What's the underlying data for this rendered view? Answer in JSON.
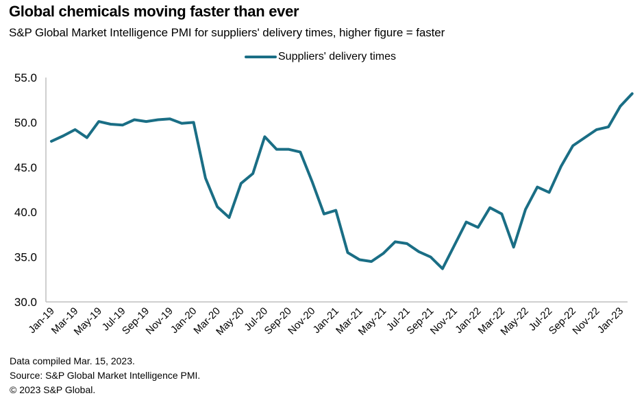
{
  "header": {
    "title": "Global chemicals moving faster than ever",
    "subtitle": "S&P Global Market Intelligence PMI for suppliers' delivery times, higher figure = faster"
  },
  "footer": {
    "lines": [
      "Data compiled Mar. 15, 2023.",
      "Source: S&P Global Market Intelligence PMI.",
      "© 2023 S&P Global."
    ]
  },
  "colors": {
    "series": "#1A6E85",
    "axis": "#BFBFBF"
  },
  "chart_data": {
    "type": "line",
    "title": "Global chemicals moving faster than ever",
    "subtitle": "S&P Global Market Intelligence PMI for suppliers' delivery times, higher figure = faster",
    "xlabel": "",
    "ylabel": "",
    "ylim": [
      30,
      55
    ],
    "yticks": [
      "55.0",
      "50.0",
      "45.0",
      "40.0",
      "35.0",
      "30.0"
    ],
    "ytick_values": [
      55,
      50,
      45,
      40,
      35,
      30
    ],
    "grid": false,
    "legend": {
      "position": "top-center",
      "entries": [
        "Suppliers' delivery times"
      ]
    },
    "x": [
      "Jan-19",
      "Feb-19",
      "Mar-19",
      "Apr-19",
      "May-19",
      "Jun-19",
      "Jul-19",
      "Aug-19",
      "Sep-19",
      "Oct-19",
      "Nov-19",
      "Dec-19",
      "Jan-20",
      "Feb-20",
      "Mar-20",
      "Apr-20",
      "May-20",
      "Jun-20",
      "Jul-20",
      "Aug-20",
      "Sep-20",
      "Oct-20",
      "Nov-20",
      "Dec-20",
      "Jan-21",
      "Feb-21",
      "Mar-21",
      "Apr-21",
      "May-21",
      "Jun-21",
      "Jul-21",
      "Aug-21",
      "Sep-21",
      "Oct-21",
      "Nov-21",
      "Dec-21",
      "Jan-22",
      "Feb-22",
      "Mar-22",
      "Apr-22",
      "May-22",
      "Jun-22",
      "Jul-22",
      "Aug-22",
      "Sep-22",
      "Oct-22",
      "Nov-22",
      "Dec-22",
      "Jan-23",
      "Feb-23"
    ],
    "xtick_labels": [
      "Jan-19",
      "Mar-19",
      "May-19",
      "Jul-19",
      "Sep-19",
      "Nov-19",
      "Jan-20",
      "Mar-20",
      "May-20",
      "Jul-20",
      "Sep-20",
      "Nov-20",
      "Jan-21",
      "Mar-21",
      "May-21",
      "Jul-21",
      "Sep-21",
      "Nov-21",
      "Jan-22",
      "Mar-22",
      "May-22",
      "Jul-22",
      "Sep-22",
      "Nov-22",
      "Jan-23"
    ],
    "series": [
      {
        "name": "Suppliers' delivery times",
        "values": [
          47.9,
          48.5,
          49.2,
          48.3,
          50.1,
          49.8,
          49.7,
          50.3,
          50.1,
          50.3,
          50.4,
          49.9,
          50.0,
          43.8,
          40.6,
          39.4,
          43.2,
          44.3,
          48.4,
          47.0,
          47.0,
          46.7,
          43.4,
          39.8,
          40.2,
          35.5,
          34.7,
          34.5,
          35.4,
          36.7,
          36.5,
          35.6,
          35.0,
          33.7,
          36.3,
          38.9,
          38.3,
          40.5,
          39.8,
          36.1,
          40.3,
          42.8,
          42.2,
          45.1,
          47.4,
          48.3,
          49.2,
          49.5,
          51.8,
          53.2
        ]
      }
    ]
  }
}
